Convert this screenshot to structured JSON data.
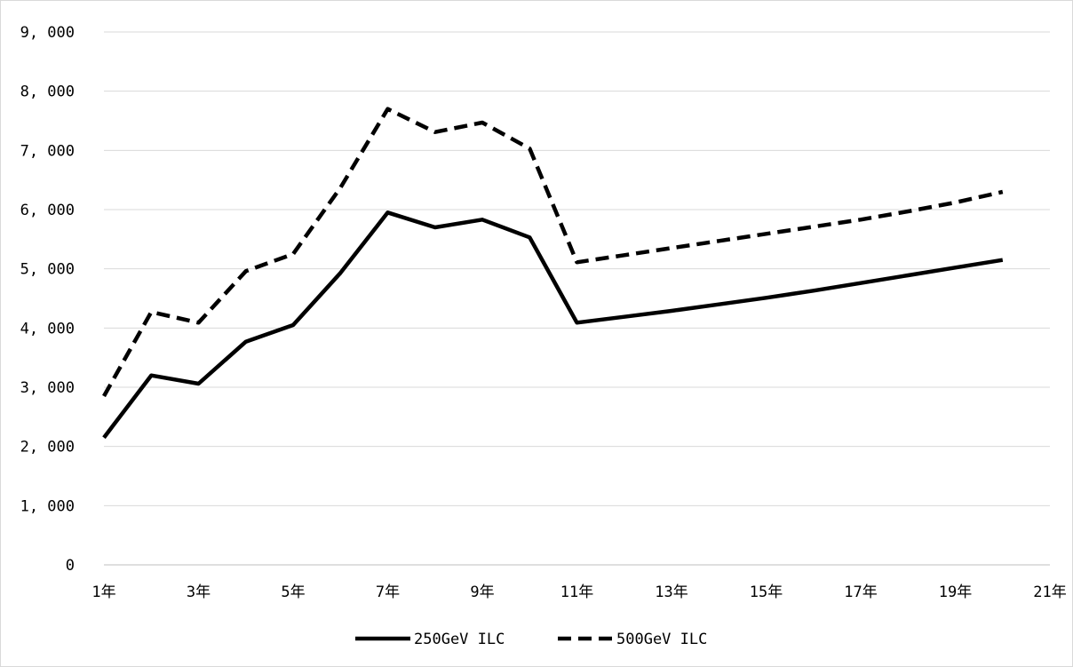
{
  "chart_data": {
    "type": "line",
    "title": "",
    "xlabel": "",
    "ylabel": "",
    "x": [
      1,
      2,
      3,
      4,
      5,
      6,
      7,
      8,
      9,
      10,
      11,
      12,
      13,
      14,
      15,
      16,
      17,
      18,
      19,
      20
    ],
    "x_ticks": [
      1,
      3,
      5,
      7,
      9,
      11,
      13,
      15,
      17,
      19,
      21
    ],
    "x_tick_labels": [
      "1年",
      "3年",
      "5年",
      "7年",
      "9年",
      "11年",
      "13年",
      "15年",
      "17年",
      "19年",
      "21年"
    ],
    "xlim": [
      1,
      21
    ],
    "y_ticks": [
      0,
      1000,
      2000,
      3000,
      4000,
      5000,
      6000,
      7000,
      8000,
      9000
    ],
    "y_tick_labels": [
      "0",
      "1, 000",
      "2, 000",
      "3, 000",
      "4, 000",
      "5, 000",
      "6, 000",
      "7, 000",
      "8, 000",
      "9, 000"
    ],
    "ylim": [
      0,
      9000
    ],
    "grid": true,
    "legend_position": "bottom",
    "series": [
      {
        "name": "250GeV ILC",
        "style": "solid",
        "color": "#000000",
        "values": [
          2150,
          3200,
          3060,
          3770,
          4050,
          4930,
          5950,
          5700,
          5830,
          5530,
          4090,
          4190,
          4290,
          4400,
          4510,
          4630,
          4760,
          4890,
          5020,
          5150
        ]
      },
      {
        "name": "500GeV ILC",
        "style": "dashed",
        "color": "#000000",
        "values": [
          2850,
          4270,
          4090,
          4960,
          5250,
          6370,
          7700,
          7310,
          7470,
          7030,
          5110,
          5230,
          5350,
          5470,
          5590,
          5710,
          5830,
          5970,
          6120,
          6300
        ]
      }
    ]
  }
}
